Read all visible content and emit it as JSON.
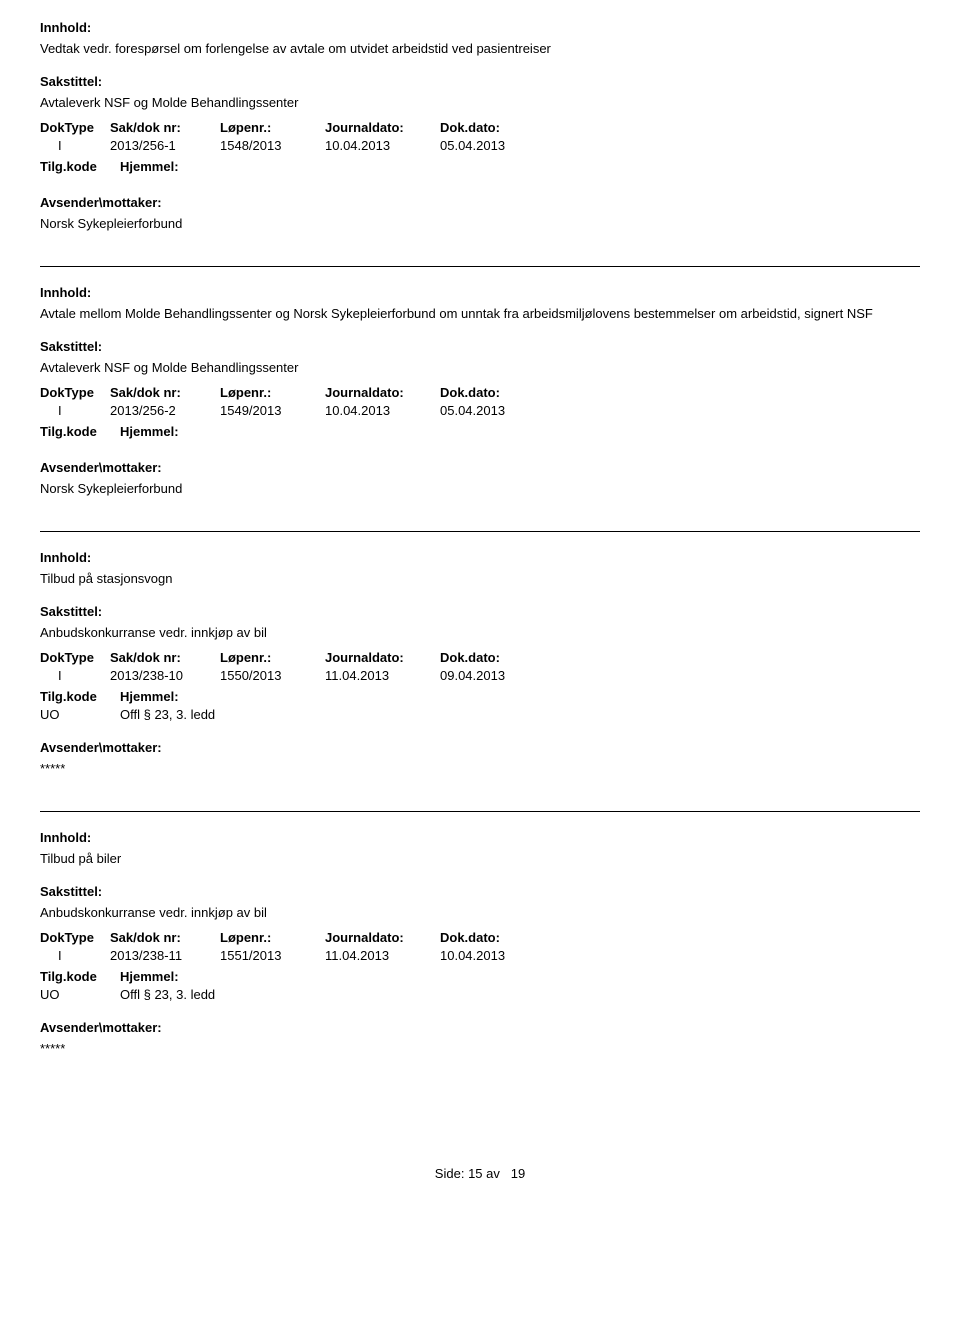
{
  "labels": {
    "innhold": "Innhold:",
    "sakstittel": "Sakstittel:",
    "doktype": "DokType",
    "saknr": "Sak/dok nr:",
    "lopenr": "Løpenr.:",
    "journaldato": "Journaldato:",
    "dokdato": "Dok.dato:",
    "tilgkode": "Tilg.kode",
    "hjemmel": "Hjemmel:",
    "avsender": "Avsender\\mottaker:"
  },
  "entries": [
    {
      "innhold": "Vedtak vedr. forespørsel om forlengelse av avtale om utvidet arbeidstid ved pasientreiser",
      "sakstittel": "Avtaleverk NSF og Molde Behandlingssenter",
      "doktype": "I",
      "saknr": "2013/256-1",
      "lopenr": "1548/2013",
      "journaldato": "10.04.2013",
      "dokdato": "05.04.2013",
      "tilgkode": "",
      "hjemmel": "",
      "avsender": "Norsk Sykepleierforbund"
    },
    {
      "innhold": "Avtale mellom Molde Behandlingssenter og Norsk Sykepleierforbund om unntak fra arbeidsmiljølovens bestemmelser om arbeidstid, signert NSF",
      "sakstittel": "Avtaleverk NSF og Molde Behandlingssenter",
      "doktype": "I",
      "saknr": "2013/256-2",
      "lopenr": "1549/2013",
      "journaldato": "10.04.2013",
      "dokdato": "05.04.2013",
      "tilgkode": "",
      "hjemmel": "",
      "avsender": "Norsk Sykepleierforbund"
    },
    {
      "innhold": "Tilbud på stasjonsvogn",
      "sakstittel": "Anbudskonkurranse vedr. innkjøp av bil",
      "doktype": "I",
      "saknr": "2013/238-10",
      "lopenr": "1550/2013",
      "journaldato": "11.04.2013",
      "dokdato": "09.04.2013",
      "tilgkode": "UO",
      "hjemmel": "Offl § 23, 3. ledd",
      "avsender": "*****"
    },
    {
      "innhold": "Tilbud på biler",
      "sakstittel": "Anbudskonkurranse vedr. innkjøp av bil",
      "doktype": "I",
      "saknr": "2013/238-11",
      "lopenr": "1551/2013",
      "journaldato": "11.04.2013",
      "dokdato": "10.04.2013",
      "tilgkode": "UO",
      "hjemmel": "Offl § 23, 3. ledd",
      "avsender": "*****"
    }
  ],
  "footer": {
    "side_label": "Side:",
    "page": "15",
    "av": "av",
    "total": "19"
  }
}
